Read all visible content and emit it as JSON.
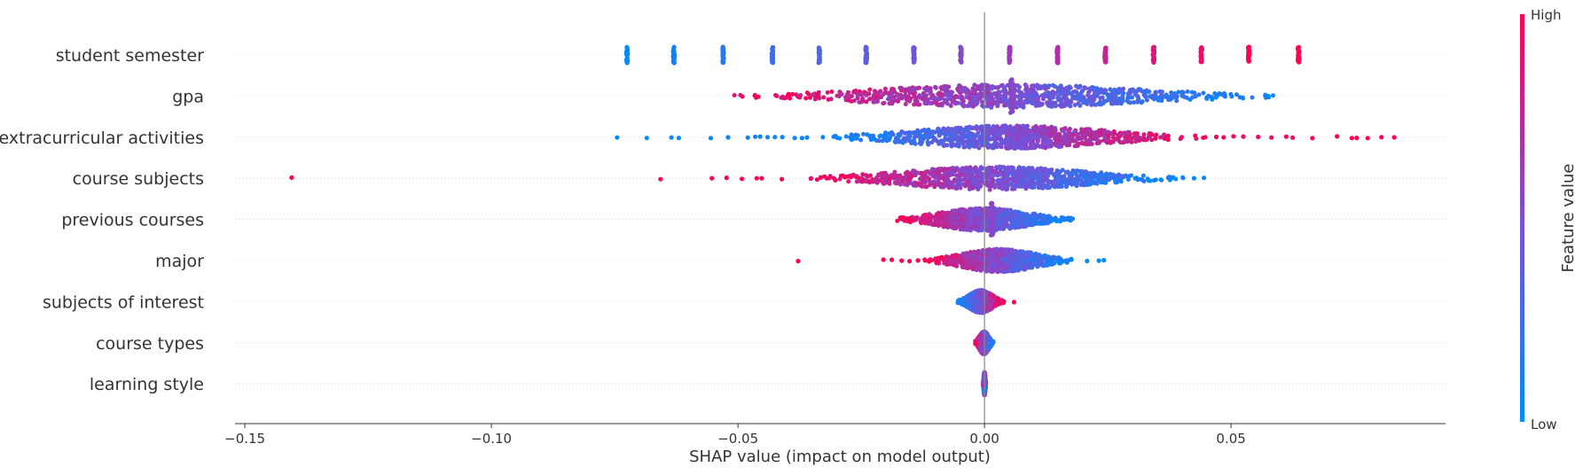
{
  "chart_data": {
    "type": "scatter",
    "subtype": "shap-beeswarm-summary",
    "title": "",
    "xlabel": "SHAP value (impact on model output)",
    "ylabel": "",
    "xlim": [
      -0.152,
      0.0935
    ],
    "x_ticks": [
      -0.15,
      -0.1,
      -0.05,
      0.0,
      0.05
    ],
    "x_tick_labels": [
      "−0.15",
      "−0.10",
      "−0.05",
      "0.00",
      "0.05"
    ],
    "grid": false,
    "legend": "none",
    "colorbar": {
      "title": "Feature value",
      "high_label": "High",
      "low_label": "Low",
      "position": "right",
      "low_color": "#008bfb",
      "high_color": "#ff0052"
    },
    "features": [
      {
        "name": "student semester",
        "clusters": [
          {
            "x": -0.0725,
            "v": 0.0
          },
          {
            "x": -0.063,
            "v": 0.08
          },
          {
            "x": -0.053,
            "v": 0.15
          },
          {
            "x": -0.043,
            "v": 0.23
          },
          {
            "x": -0.0335,
            "v": 0.31
          },
          {
            "x": -0.024,
            "v": 0.38
          },
          {
            "x": -0.0143,
            "v": 0.46
          },
          {
            "x": -0.0048,
            "v": 0.54
          },
          {
            "x": 0.0051,
            "v": 0.62
          },
          {
            "x": 0.0148,
            "v": 0.69
          },
          {
            "x": 0.0245,
            "v": 0.77
          },
          {
            "x": 0.0343,
            "v": 0.85
          },
          {
            "x": 0.044,
            "v": 0.92
          },
          {
            "x": 0.0536,
            "v": 1.0
          },
          {
            "x": 0.0637,
            "v": 1.0
          }
        ],
        "band_points": []
      },
      {
        "name": "gpa",
        "range": [
          -0.051,
          0.0605
        ],
        "trend": "decreasing",
        "spike_at": 0.0055,
        "band_points": []
      },
      {
        "name": "extracurricular activities",
        "range": [
          -0.034,
          0.045
        ],
        "trend": "increasing",
        "band_points": [],
        "outliers": [
          {
            "x": -0.0745,
            "v": 0.0
          },
          {
            "x": -0.0685,
            "v": 0.0
          },
          {
            "x": -0.0635,
            "v": 0.0
          },
          {
            "x": -0.062,
            "v": 0.0
          },
          {
            "x": -0.0555,
            "v": 0.02
          },
          {
            "x": -0.052,
            "v": 0.05
          },
          {
            "x": -0.048,
            "v": 0.05
          },
          {
            "x": -0.0465,
            "v": 0.05
          },
          {
            "x": -0.0455,
            "v": 0.05
          },
          {
            "x": -0.044,
            "v": 0.05
          },
          {
            "x": -0.0425,
            "v": 0.05
          },
          {
            "x": -0.041,
            "v": 0.05
          },
          {
            "x": -0.0385,
            "v": 0.05
          },
          {
            "x": -0.037,
            "v": 0.05
          },
          {
            "x": -0.036,
            "v": 0.05
          },
          {
            "x": 0.047,
            "v": 0.95
          },
          {
            "x": 0.0485,
            "v": 0.95
          },
          {
            "x": 0.0505,
            "v": 0.95
          },
          {
            "x": 0.0525,
            "v": 0.95
          },
          {
            "x": 0.0555,
            "v": 0.95
          },
          {
            "x": 0.0582,
            "v": 0.95
          },
          {
            "x": 0.0612,
            "v": 0.95
          },
          {
            "x": 0.0625,
            "v": 0.95
          },
          {
            "x": 0.0665,
            "v": 1.0
          },
          {
            "x": 0.0715,
            "v": 1.0
          },
          {
            "x": 0.0745,
            "v": 1.0
          },
          {
            "x": 0.0777,
            "v": 1.0
          },
          {
            "x": 0.0805,
            "v": 1.0
          },
          {
            "x": 0.0831,
            "v": 1.0
          },
          {
            "x": 0.0755,
            "v": 1.0
          }
        ]
      },
      {
        "name": "course subjects",
        "range": [
          -0.037,
          0.041
        ],
        "trend": "decreasing",
        "band_points": [],
        "outliers": [
          {
            "x": -0.1405,
            "v": 1.0
          },
          {
            "x": -0.0657,
            "v": 1.0
          },
          {
            "x": -0.0553,
            "v": 1.0
          },
          {
            "x": -0.0523,
            "v": 1.0
          },
          {
            "x": -0.0492,
            "v": 1.0
          },
          {
            "x": -0.0462,
            "v": 1.0
          },
          {
            "x": -0.0452,
            "v": 1.0
          },
          {
            "x": -0.0411,
            "v": 1.0
          },
          {
            "x": 0.0425,
            "v": 0.0
          },
          {
            "x": 0.0445,
            "v": 0.0
          }
        ]
      },
      {
        "name": "previous courses",
        "range": [
          -0.0185,
          0.018
        ],
        "trend": "decreasing",
        "spike_at": 0.0015,
        "band_points": []
      },
      {
        "name": "major",
        "range": [
          -0.0125,
          0.0185
        ],
        "trend": "decreasing",
        "band_points": [],
        "outliers": [
          {
            "x": -0.0378,
            "v": 1.0
          },
          {
            "x": -0.0205,
            "v": 1.0
          },
          {
            "x": -0.0188,
            "v": 1.0
          },
          {
            "x": -0.0168,
            "v": 1.0
          },
          {
            "x": -0.0152,
            "v": 1.0
          },
          {
            "x": -0.0135,
            "v": 1.0
          },
          {
            "x": 0.0208,
            "v": 0.0
          },
          {
            "x": 0.0232,
            "v": 0.0
          },
          {
            "x": 0.0242,
            "v": 0.0
          }
        ]
      },
      {
        "name": "subjects of interest",
        "range": [
          -0.0055,
          0.004
        ],
        "trend": "increasing",
        "band_points": [],
        "outliers": [
          {
            "x": 0.006,
            "v": 1.0
          }
        ]
      },
      {
        "name": "course types",
        "range": [
          -0.002,
          0.0018
        ],
        "trend": "decreasing",
        "band_points": []
      },
      {
        "name": "learning style",
        "range": [
          -0.0003,
          0.0003
        ],
        "trend": "mixed",
        "band_points": []
      }
    ]
  }
}
